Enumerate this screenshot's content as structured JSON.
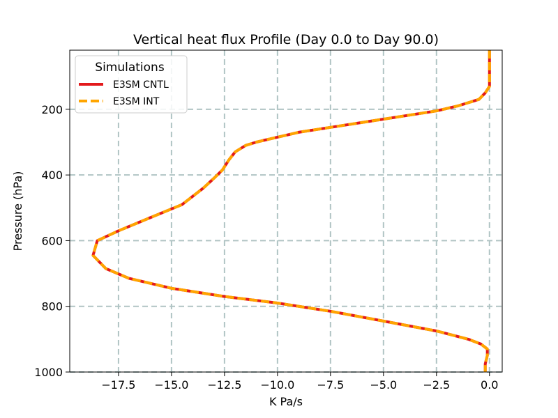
{
  "chart_data": {
    "type": "line",
    "title": "Vertical heat flux Profile (Day 0.0 to Day 90.0)",
    "xlabel": "K Pa/s",
    "ylabel": "Pressure (hPa)",
    "xlim": [
      -19.8,
      0.6
    ],
    "ylim": [
      1000,
      20
    ],
    "y_inverted": true,
    "grid": true,
    "xticks": [
      -17.5,
      -15.0,
      -12.5,
      -10.0,
      -7.5,
      -5.0,
      -2.5,
      0.0
    ],
    "xtick_labels": [
      "−17.5",
      "−15.0",
      "−12.5",
      "−10.0",
      "−7.5",
      "−5.0",
      "−2.5",
      "0.0"
    ],
    "yticks": [
      200,
      400,
      600,
      800,
      1000
    ],
    "ytick_labels": [
      "200",
      "400",
      "600",
      "800",
      "1000"
    ],
    "legend": {
      "title": "Simulations",
      "position": "top-left",
      "entries": [
        "E3SM CNTL",
        "E3SM INT"
      ]
    },
    "series": [
      {
        "name": "E3SM CNTL",
        "color": "#e31a1c",
        "style": "solid",
        "x": [
          0.0,
          0.0,
          0.0,
          0.0,
          -0.2,
          -0.5,
          -1.5,
          -2.5,
          -4.0,
          -5.5,
          -7.5,
          -9.0,
          -10.0,
          -11.0,
          -11.5,
          -12.0,
          -12.3,
          -12.6,
          -13.0,
          -13.5,
          -14.5,
          -16.0,
          -17.5,
          -18.5,
          -18.7,
          -18.1,
          -17.0,
          -15.0,
          -12.5,
          -10.0,
          -7.5,
          -5.0,
          -2.5,
          -1.0,
          -0.4,
          -0.1,
          -0.1,
          -0.2,
          -0.2
        ],
        "y": [
          20,
          60,
          110,
          130,
          150,
          170,
          190,
          205,
          220,
          235,
          255,
          270,
          285,
          300,
          310,
          330,
          355,
          385,
          410,
          440,
          490,
          530,
          570,
          600,
          645,
          685,
          715,
          745,
          770,
          790,
          815,
          845,
          875,
          900,
          915,
          930,
          950,
          975,
          1000
        ]
      },
      {
        "name": "E3SM INT",
        "color": "#ffa500",
        "style": "dashed",
        "x": [
          0.0,
          0.0,
          0.0,
          0.0,
          -0.2,
          -0.5,
          -1.5,
          -2.5,
          -4.0,
          -5.5,
          -7.5,
          -9.0,
          -10.0,
          -11.0,
          -11.5,
          -12.0,
          -12.3,
          -12.6,
          -13.0,
          -13.5,
          -14.5,
          -16.0,
          -17.5,
          -18.5,
          -18.7,
          -18.1,
          -17.0,
          -15.0,
          -12.5,
          -10.0,
          -7.5,
          -5.0,
          -2.5,
          -1.0,
          -0.4,
          -0.1,
          -0.1,
          -0.2,
          -0.2
        ],
        "y": [
          20,
          60,
          110,
          130,
          150,
          170,
          190,
          205,
          220,
          235,
          255,
          270,
          285,
          300,
          310,
          330,
          355,
          385,
          410,
          440,
          490,
          530,
          570,
          600,
          645,
          685,
          715,
          745,
          770,
          790,
          815,
          845,
          875,
          900,
          915,
          930,
          950,
          975,
          1000
        ]
      }
    ]
  }
}
